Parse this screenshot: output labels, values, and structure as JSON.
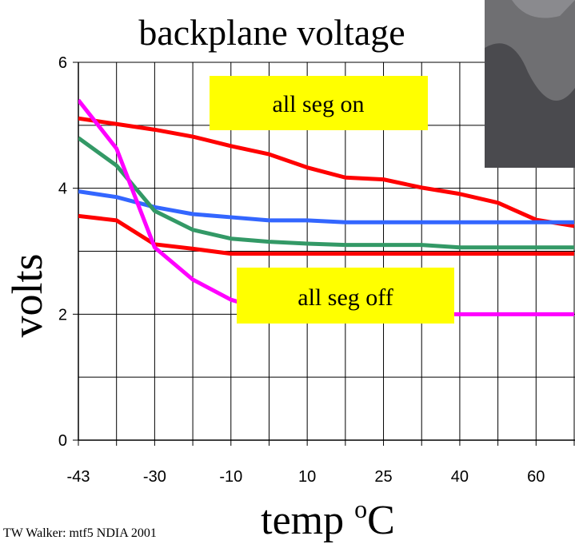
{
  "chart_data": {
    "type": "line",
    "title": "backplane voltage",
    "ylabel": "volts",
    "xlabel": "temp ",
    "xlabel_sup": "o",
    "xlabel_unit": "C",
    "footer": "TW Walker: mtf5  NDIA  2001",
    "annotations": [
      "all seg on",
      "all seg off"
    ],
    "categories": [
      "-43",
      null,
      "-30",
      null,
      "-10",
      null,
      "10",
      null,
      "25",
      null,
      "40",
      null,
      "60",
      null
    ],
    "series": [
      {
        "color": "#ff0000",
        "values": [
          5.11,
          5.02,
          4.93,
          4.82,
          4.67,
          4.54,
          4.33,
          4.17,
          4.14,
          4.01,
          3.91,
          3.77,
          3.5,
          3.4
        ]
      },
      {
        "color": "#3366ff",
        "values": [
          3.95,
          3.86,
          3.7,
          3.59,
          3.54,
          3.49,
          3.49,
          3.46,
          3.46,
          3.46,
          3.46,
          3.46,
          3.46,
          3.46
        ]
      },
      {
        "color": "#339966",
        "values": [
          4.8,
          4.36,
          3.64,
          3.34,
          3.2,
          3.15,
          3.12,
          3.1,
          3.1,
          3.1,
          3.06,
          3.06,
          3.06,
          3.06
        ]
      },
      {
        "color": "#ff0000",
        "values": [
          3.56,
          3.49,
          3.11,
          3.04,
          2.96,
          2.96,
          2.96,
          2.96,
          2.96,
          2.96,
          2.96,
          2.96,
          2.96,
          2.96
        ]
      },
      {
        "color": "#ff00ff",
        "values": [
          5.4,
          4.63,
          3.06,
          2.55,
          2.23,
          2.05,
          2.02,
          2.0,
          2.0,
          2.0,
          2.0,
          2.0,
          2.0,
          2.0
        ]
      }
    ],
    "ylim": [
      0,
      6
    ],
    "yticks": [
      0,
      2,
      4,
      6
    ],
    "minor_yticks": [
      1,
      3,
      5
    ],
    "grid": true
  }
}
